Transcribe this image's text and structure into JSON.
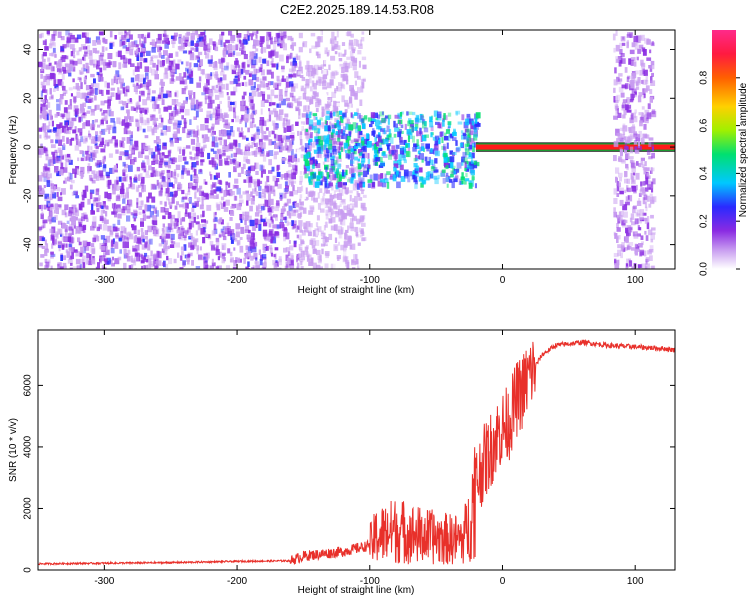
{
  "title": "C2E2.2025.189.14.53.R08",
  "colors": {
    "background": "#ffffff",
    "axis": "#000000",
    "snr_line": "#e8302a",
    "spectrogram_low": "#7a22e0",
    "spectrogram_mid": "#18c8d8",
    "spectrogram_high": "#e8102a"
  },
  "chart_data": [
    {
      "type": "heatmap",
      "title": "",
      "xlabel": "Height of straight line (km)",
      "ylabel": "Frequency (Hz)",
      "xlim": [
        -350,
        130
      ],
      "ylim": [
        -50,
        48
      ],
      "xticks": [
        -300,
        -200,
        -100,
        0,
        100
      ],
      "yticks": [
        -40,
        -20,
        0,
        20,
        40
      ],
      "colorbar": {
        "label": "Normalized spectral amplitude",
        "range": [
          0,
          1
        ],
        "ticks": [
          "0.0",
          "0.2",
          "0.4",
          "0.6",
          "0.8"
        ],
        "colormap": [
          "#ffffff",
          "#c89cf0",
          "#8a2be2",
          "#2a2aff",
          "#00c8ff",
          "#00e070",
          "#a0f000",
          "#ffd000",
          "#ff6000",
          "#ff1a40",
          "#ff2a8a"
        ]
      },
      "regions": [
        {
          "x": [
            -350,
            -155
          ],
          "y": [
            -50,
            48
          ],
          "amplitude": 0.15,
          "description": "broadband noise"
        },
        {
          "x": [
            -155,
            -105
          ],
          "y": [
            -50,
            48
          ],
          "amplitude": 0.08,
          "description": "weaker broadband noise"
        },
        {
          "x": [
            -150,
            -20
          ],
          "y": [
            -15,
            15
          ],
          "amplitude": 0.35,
          "description": "narrowing signal band"
        },
        {
          "x": [
            -20,
            130
          ],
          "y": [
            -1.5,
            1.5
          ],
          "amplitude": 0.95,
          "description": "strong carrier line"
        },
        {
          "x": [
            83,
            113
          ],
          "y": [
            -50,
            48
          ],
          "amplitude": 0.12,
          "description": "noise burst"
        }
      ]
    },
    {
      "type": "line",
      "title": "",
      "xlabel": "Height of straight line (km)",
      "ylabel": "SNR (10 * v/v)",
      "xlim": [
        -350,
        130
      ],
      "ylim": [
        0,
        7800
      ],
      "xticks": [
        -300,
        -200,
        -100,
        0,
        100
      ],
      "yticks": [
        0,
        2000,
        4000,
        6000
      ],
      "series": [
        {
          "x": [
            -350,
            -300,
            -250,
            -200,
            -160,
            -150,
            -120,
            -100,
            -95,
            -80,
            -60,
            -40,
            -30,
            -25,
            -20,
            -15,
            -10,
            -5,
            0,
            5,
            10,
            15,
            20,
            30,
            40,
            60,
            80,
            100,
            120,
            130
          ],
          "y": [
            200,
            220,
            240,
            280,
            300,
            450,
            600,
            800,
            1100,
            1300,
            1100,
            1000,
            1000,
            1500,
            2800,
            3400,
            3800,
            4300,
            4600,
            4800,
            5500,
            5800,
            6300,
            7000,
            7300,
            7400,
            7300,
            7250,
            7200,
            7150
          ]
        }
      ]
    }
  ]
}
